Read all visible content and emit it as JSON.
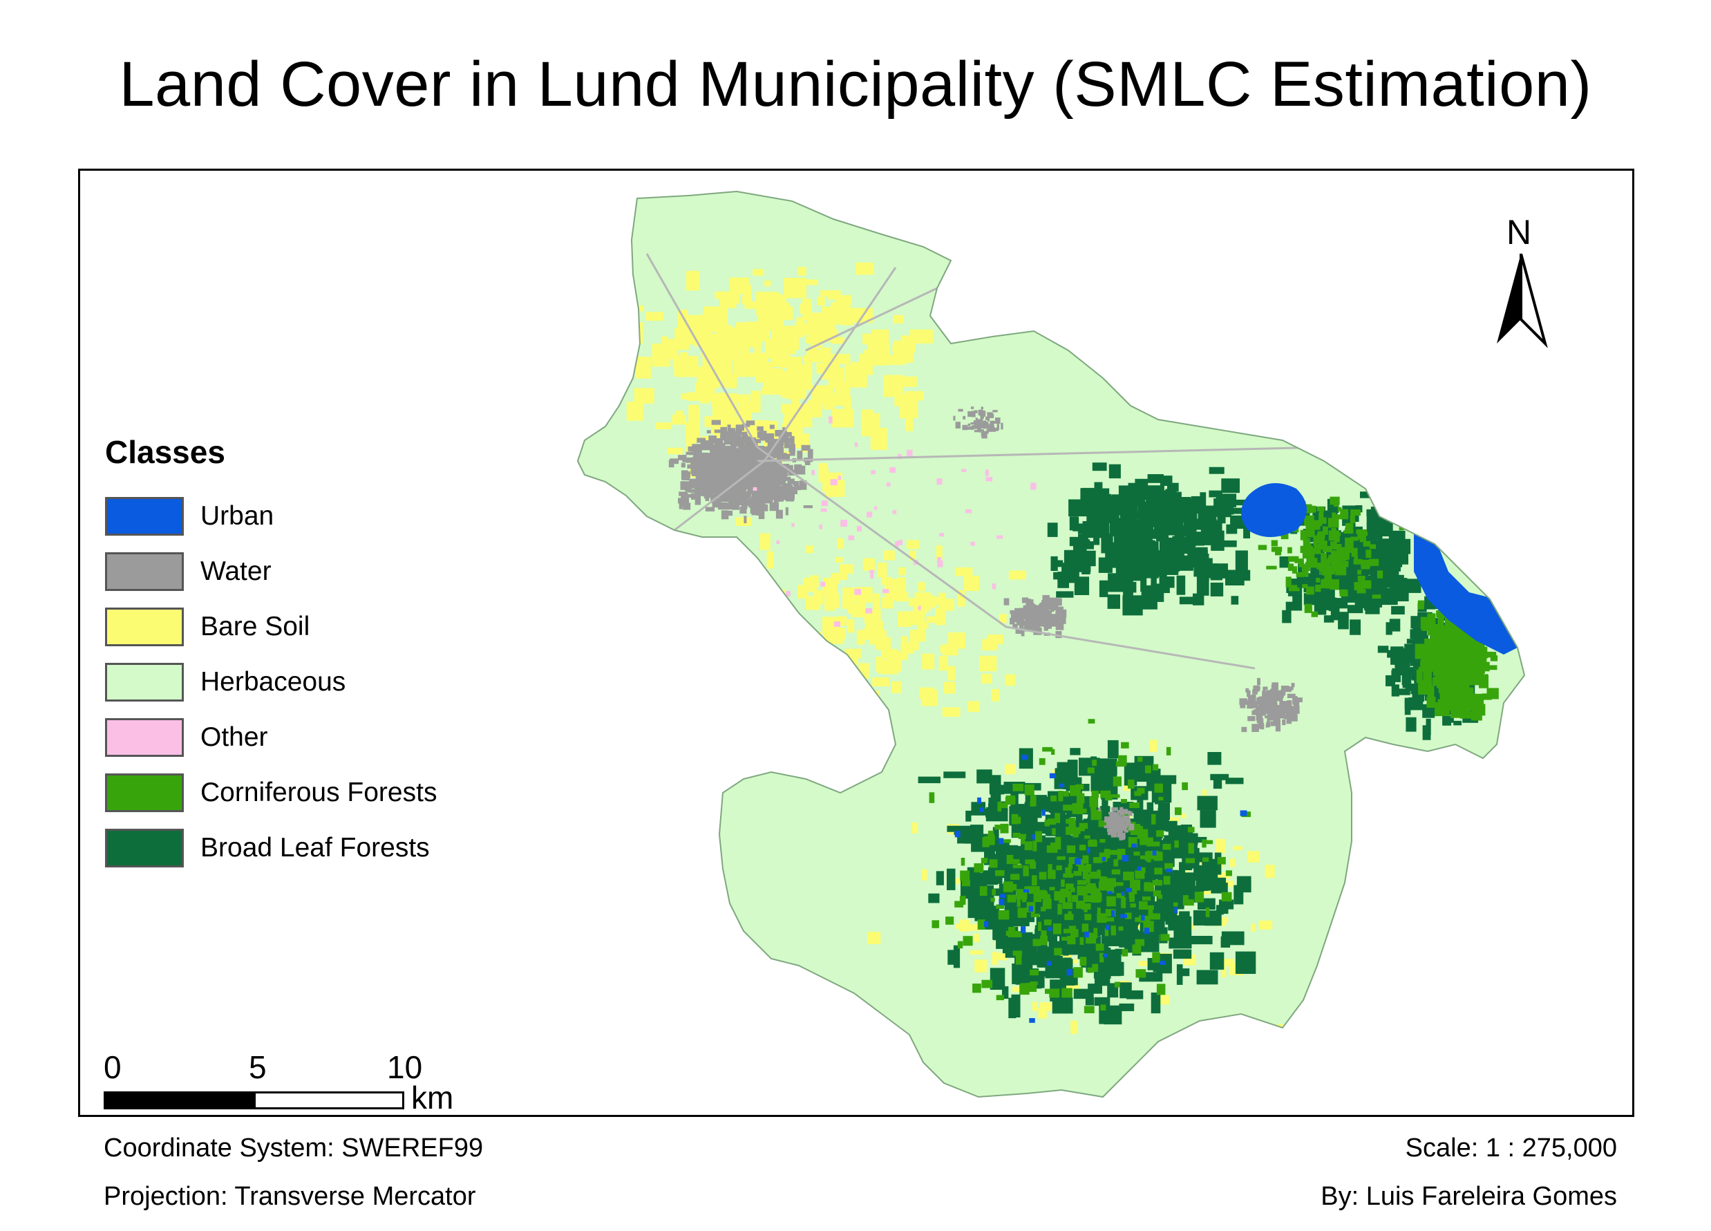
{
  "title": "Land Cover in Lund Municipality (SMLC Estimation)",
  "legend": {
    "title": "Classes",
    "items": [
      {
        "label": "Urban",
        "color": "#0a5be0"
      },
      {
        "label": "Water",
        "color": "#9b9b9b"
      },
      {
        "label": "Bare Soil",
        "color": "#fcfc72"
      },
      {
        "label": "Herbaceous",
        "color": "#d3fac8"
      },
      {
        "label": "Other",
        "color": "#fbbfe6"
      },
      {
        "label": "Corniferous Forests",
        "color": "#38a40c"
      },
      {
        "label": "Broad Leaf Forests",
        "color": "#0d6e3c"
      }
    ]
  },
  "north_arrow": {
    "label": "N"
  },
  "scale_bar": {
    "ticks": [
      "0",
      "5",
      "10"
    ],
    "unit": "km"
  },
  "footer": {
    "coordinate_system": "Coordinate System: SWEREF99",
    "projection": "Projection: Transverse Mercator",
    "scale": "Scale: 1 : 275,000",
    "author": "By: Luis Fareleira Gomes"
  }
}
